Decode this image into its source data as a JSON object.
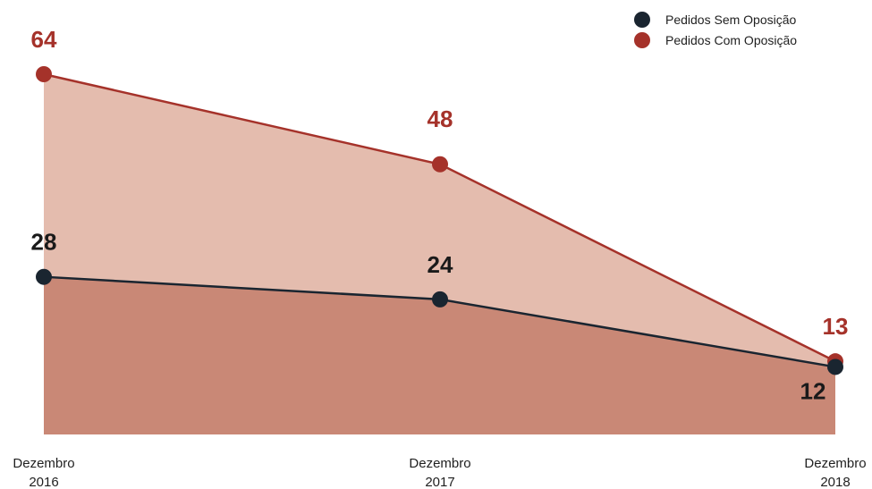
{
  "chart_data": {
    "type": "area",
    "categories": [
      [
        "Dezembro",
        "2016"
      ],
      [
        "Dezembro",
        "2017"
      ],
      [
        "Dezembro",
        "2018"
      ]
    ],
    "series": [
      {
        "name": "Pedidos Sem Oposição",
        "values": [
          28,
          24,
          12
        ],
        "line_color": "#1a2530",
        "fill_color": "#c98876",
        "label_color": "#1a1a1a"
      },
      {
        "name": "Pedidos Com Oposição",
        "values": [
          64,
          48,
          13
        ],
        "line_color": "#a5322a",
        "fill_color": "#e4bcae",
        "label_color": "#a5322a"
      }
    ],
    "ylim": [
      0,
      64
    ],
    "grid": false,
    "legend_position": "top-right"
  }
}
